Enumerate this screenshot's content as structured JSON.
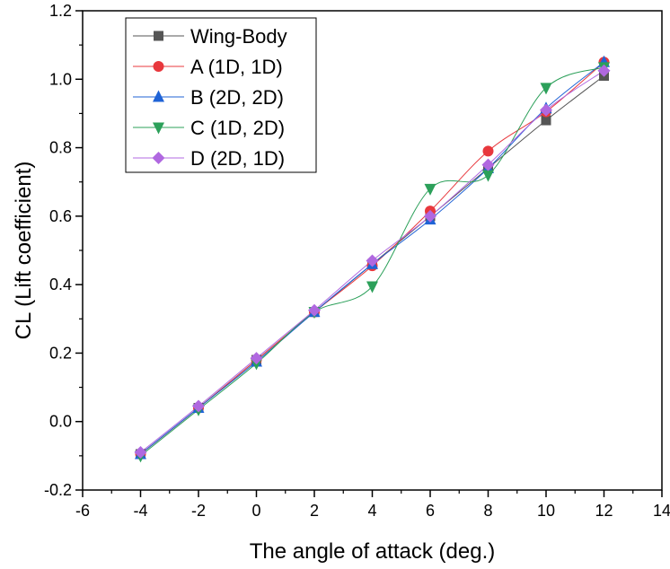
{
  "chart_data": {
    "type": "line",
    "title": "",
    "xlabel": "The angle of attack (deg.)",
    "ylabel": "CL (Lift coefficient)",
    "xlim": [
      -6,
      14
    ],
    "ylim": [
      -0.2,
      1.2
    ],
    "xticks": [
      -6,
      -4,
      -2,
      0,
      2,
      4,
      6,
      8,
      10,
      12,
      14
    ],
    "yticks": [
      -0.2,
      0.0,
      0.2,
      0.4,
      0.6,
      0.8,
      1.0,
      1.2
    ],
    "xtick_labels": [
      "-6",
      "-4",
      "-2",
      "0",
      "2",
      "4",
      "6",
      "8",
      "10",
      "12",
      "14"
    ],
    "ytick_labels": [
      "-0.2",
      "0.0",
      "0.2",
      "0.4",
      "0.6",
      "0.8",
      "1.0",
      "1.2"
    ],
    "grid": false,
    "legend_position": "top-left",
    "x": [
      -4,
      -2,
      0,
      2,
      4,
      6,
      8,
      10,
      12
    ],
    "series": [
      {
        "name": "Wing-Body",
        "marker": "square",
        "color": "#555555",
        "values": [
          -0.095,
          0.04,
          0.18,
          0.32,
          0.46,
          0.6,
          0.74,
          0.88,
          1.01
        ]
      },
      {
        "name": "A (1D, 1D)",
        "marker": "circle",
        "color": "#e8383d",
        "values": [
          -0.095,
          0.04,
          0.18,
          0.32,
          0.455,
          0.615,
          0.79,
          0.905,
          1.05
        ]
      },
      {
        "name": "B (2D, 2D)",
        "marker": "triangle-up",
        "color": "#1f63d6",
        "values": [
          -0.095,
          0.04,
          0.175,
          0.32,
          0.46,
          0.59,
          0.74,
          0.915,
          1.05
        ]
      },
      {
        "name": "C (1D, 2D)",
        "marker": "triangle-down",
        "color": "#2ca05a",
        "values": [
          -0.1,
          0.035,
          0.17,
          0.32,
          0.395,
          0.68,
          0.72,
          0.975,
          1.035
        ]
      },
      {
        "name": "D (2D, 1D)",
        "marker": "diamond",
        "color": "#b068e0",
        "values": [
          -0.09,
          0.045,
          0.185,
          0.325,
          0.47,
          0.6,
          0.75,
          0.91,
          1.025
        ]
      }
    ]
  }
}
